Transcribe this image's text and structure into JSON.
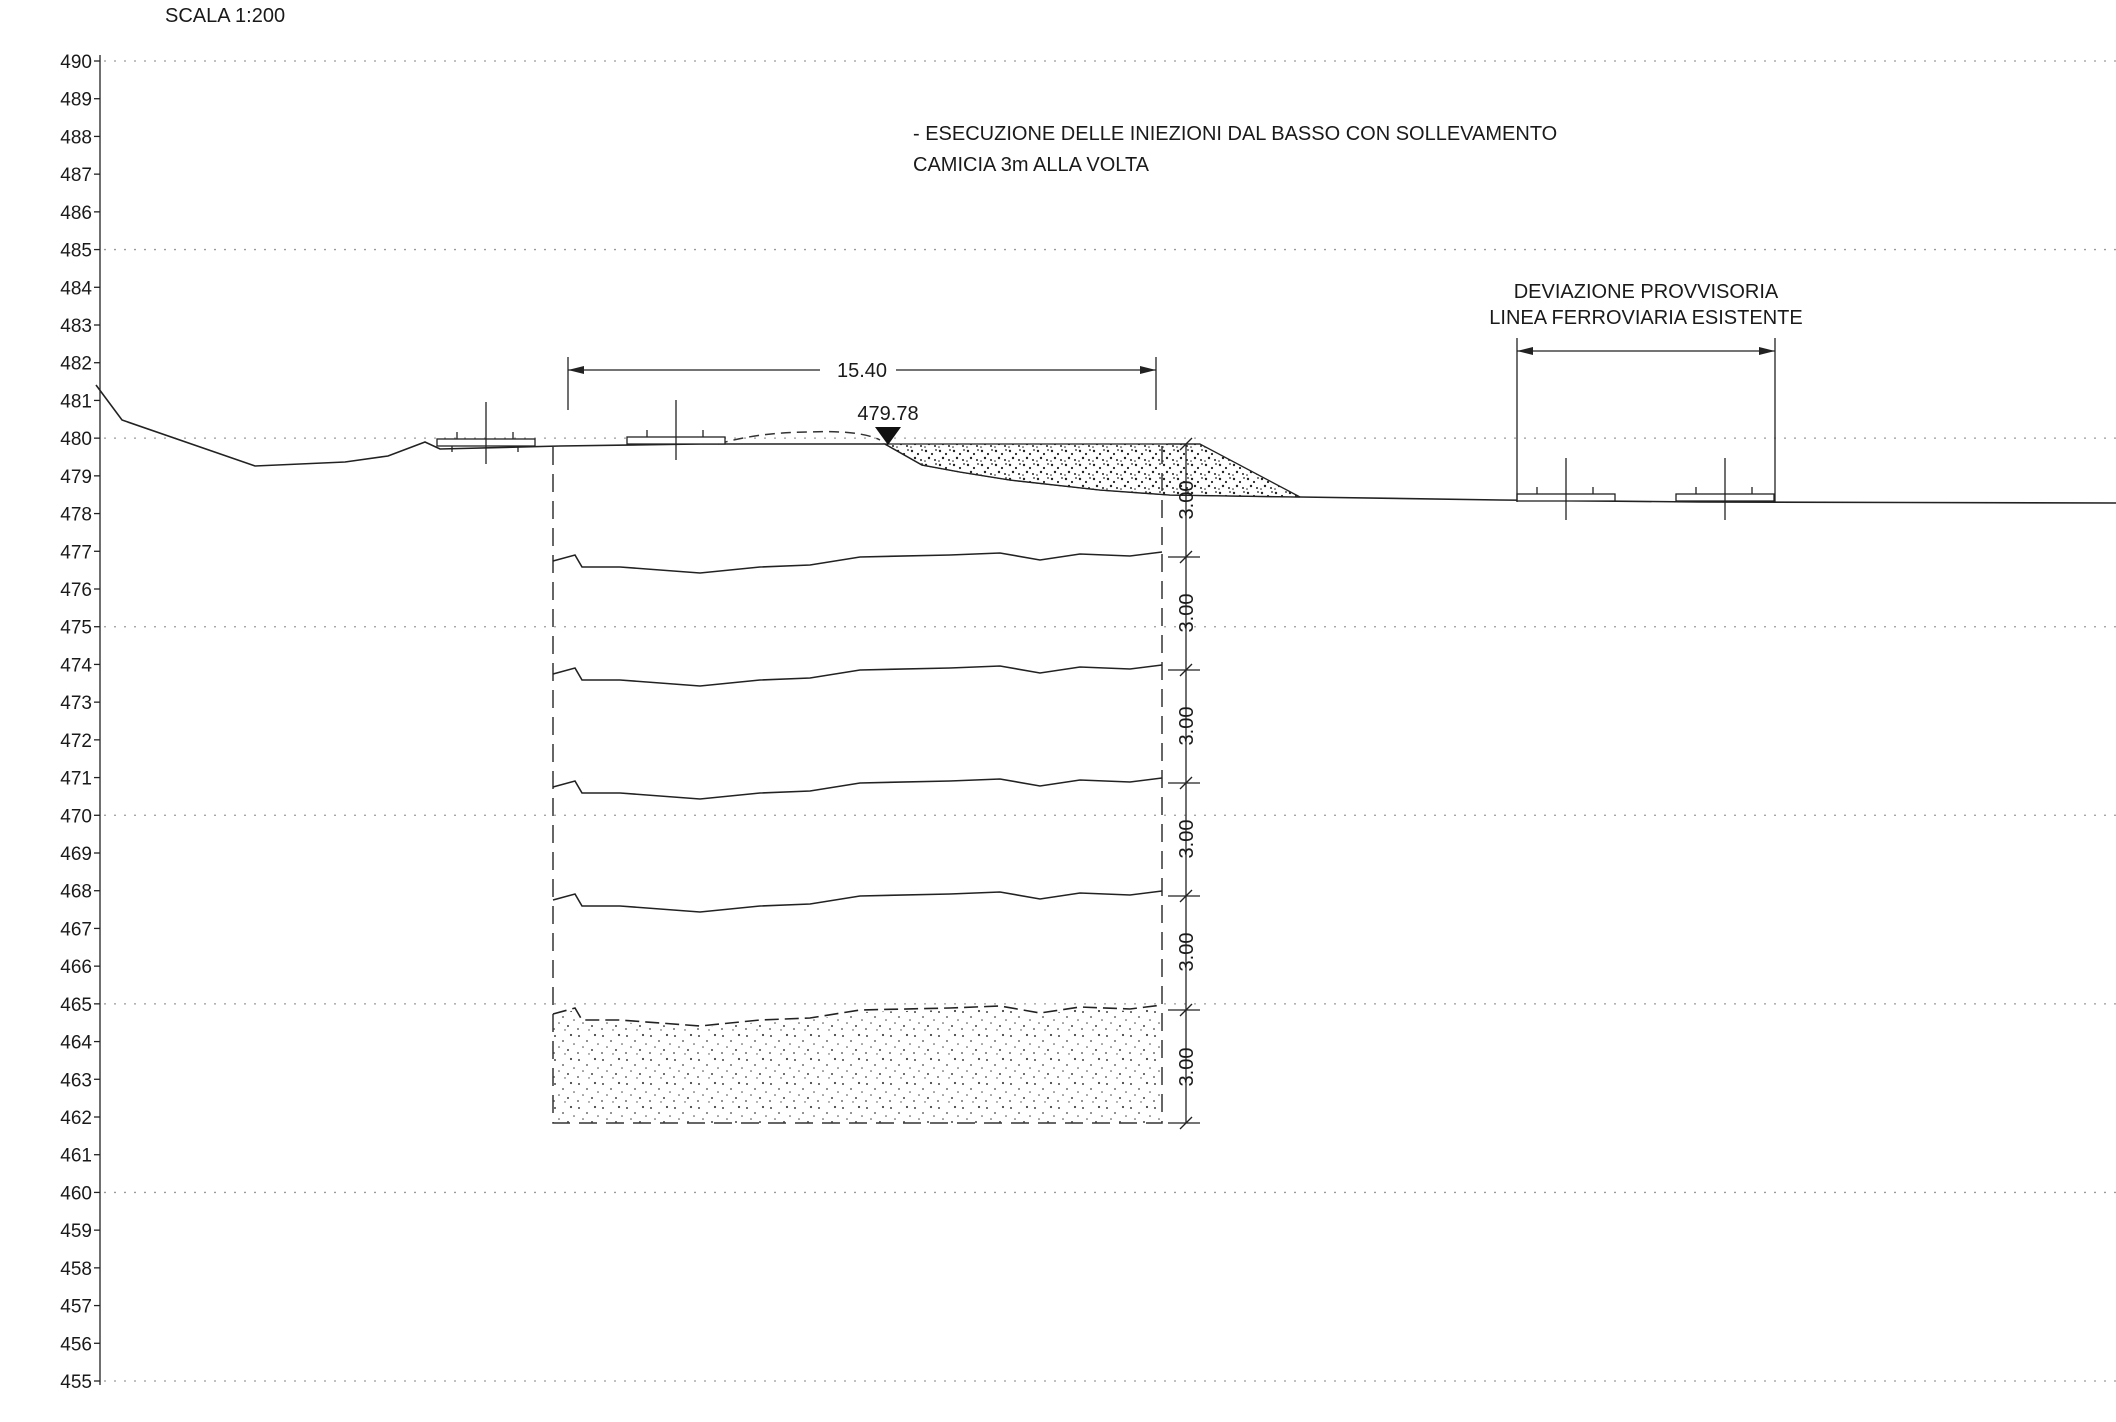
{
  "drawing": {
    "scale_label": "SCALA 1:200",
    "y_axis_ticks": [
      490,
      489,
      488,
      487,
      486,
      485,
      484,
      483,
      482,
      481,
      480,
      479,
      478,
      477,
      476,
      475,
      474,
      473,
      472,
      471,
      470,
      469,
      468,
      467,
      466,
      465,
      464,
      463,
      462,
      461,
      460,
      459,
      458,
      457,
      456,
      455
    ],
    "note_line_1": "- ESECUZIONE DELLE INIEZIONI DAL BASSO CON SOLLEVAMENTO",
    "note_line_2": "CAMICIA 3m ALLA VOLTA",
    "deviation_line_1": "DEVIAZIONE PROVVISORIA",
    "deviation_line_2": "LINEA FERROVIARIA ESISTENTE",
    "width_dimension": "15.40",
    "elevation_marker": "479.78",
    "stage_dimensions": [
      "3.00",
      "3.00",
      "3.00",
      "3.00",
      "3.00",
      "3.00"
    ]
  }
}
